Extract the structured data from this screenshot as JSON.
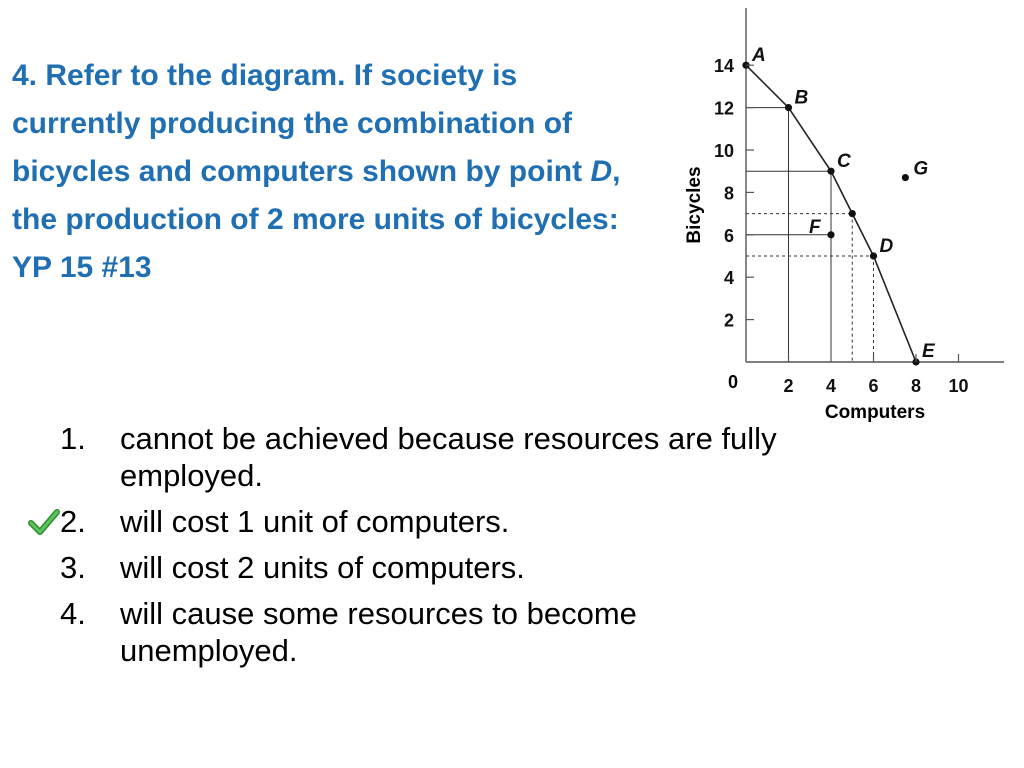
{
  "question": {
    "part1": "4. Refer to the diagram. If society is currently producing the combination of bicycles and computers shown by point ",
    "point": "D",
    "part2": ", the production of 2 more units of bicycles: YP 15 #13"
  },
  "answers": [
    {
      "number": "1.",
      "text": "cannot be achieved because resources are fully employed.",
      "correct": false
    },
    {
      "number": "2.",
      "text": "will cost 1 unit of computers.",
      "correct": true
    },
    {
      "number": "3.",
      "text": "will cost 2 units of computers.",
      "correct": false
    },
    {
      "number": "4.",
      "text": "will cause some resources to become unemployed.",
      "correct": false
    }
  ],
  "colors": {
    "question": "#1f6fb2",
    "check": "#3aa63a"
  },
  "chart_data": {
    "type": "line",
    "xlabel": "Computers",
    "ylabel": "Bicycles",
    "origin_label": "0",
    "xlim": [
      0,
      10
    ],
    "ylim": [
      0,
      14
    ],
    "x_ticks": [
      "2",
      "4",
      "6",
      "8",
      "10"
    ],
    "y_ticks": [
      "2",
      "4",
      "6",
      "8",
      "10",
      "12",
      "14"
    ],
    "x_tick_values": [
      2,
      4,
      6,
      8,
      10
    ],
    "y_tick_values": [
      2,
      4,
      6,
      8,
      10,
      12,
      14
    ],
    "curve": [
      [
        0,
        14
      ],
      [
        2,
        12
      ],
      [
        4,
        9
      ],
      [
        5,
        7
      ],
      [
        6,
        5
      ],
      [
        8,
        0
      ]
    ],
    "labeled_points": [
      {
        "label": "A",
        "x": 0,
        "y": 14
      },
      {
        "label": "B",
        "x": 2,
        "y": 12
      },
      {
        "label": "C",
        "x": 4,
        "y": 9
      },
      {
        "label": "D",
        "x": 6,
        "y": 5
      },
      {
        "label": "E",
        "x": 8,
        "y": 0
      },
      {
        "label": "F",
        "x": 4,
        "y": 6
      },
      {
        "label": "G",
        "x": 7.5,
        "y": 8.7
      }
    ],
    "unlabeled_points": [
      {
        "x": 5,
        "y": 7
      }
    ],
    "solid_guides": [
      {
        "x": 2,
        "y": 12
      },
      {
        "x": 4,
        "y": 9
      },
      {
        "x": 4,
        "y": 6
      }
    ],
    "dashed_guides": [
      {
        "x": 5,
        "y": 7
      },
      {
        "x": 6,
        "y": 5
      }
    ],
    "grid": false
  }
}
